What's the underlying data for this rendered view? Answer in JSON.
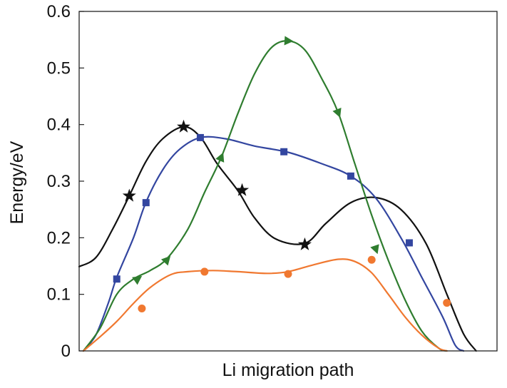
{
  "chart_data": {
    "type": "line",
    "title": "",
    "xlabel": "Li migration path",
    "ylabel": "Energy/eV",
    "ylim": [
      0,
      0.6
    ],
    "xlim": [
      0,
      1
    ],
    "yticks": [
      "0",
      "0.1",
      "0.2",
      "0.3",
      "0.4",
      "0.5",
      "0.6"
    ],
    "grid": false,
    "legend": "none",
    "series": [
      {
        "color": "#111111",
        "marker": "star",
        "curve": [
          [
            0,
            0.149
          ],
          [
            0.04,
            0.165
          ],
          [
            0.08,
            0.215
          ],
          [
            0.12,
            0.274
          ],
          [
            0.16,
            0.335
          ],
          [
            0.2,
            0.375
          ],
          [
            0.25,
            0.396
          ],
          [
            0.29,
            0.378
          ],
          [
            0.33,
            0.331
          ],
          [
            0.38,
            0.283
          ],
          [
            0.42,
            0.235
          ],
          [
            0.47,
            0.198
          ],
          [
            0.54,
            0.19
          ],
          [
            0.59,
            0.225
          ],
          [
            0.65,
            0.262
          ],
          [
            0.71,
            0.271
          ],
          [
            0.77,
            0.25
          ],
          [
            0.83,
            0.19
          ],
          [
            0.88,
            0.1
          ],
          [
            0.92,
            0.03
          ],
          [
            0.95,
            0.0
          ]
        ],
        "markers": [
          [
            0.12,
            0.274
          ],
          [
            0.25,
            0.396
          ],
          [
            0.39,
            0.284
          ],
          [
            0.54,
            0.188
          ]
        ]
      },
      {
        "color": "#3346a0",
        "marker": "square",
        "curve": [
          [
            0.01,
            0.0
          ],
          [
            0.04,
            0.028
          ],
          [
            0.07,
            0.085
          ],
          [
            0.09,
            0.13
          ],
          [
            0.13,
            0.2
          ],
          [
            0.16,
            0.263
          ],
          [
            0.2,
            0.32
          ],
          [
            0.24,
            0.356
          ],
          [
            0.29,
            0.377
          ],
          [
            0.35,
            0.375
          ],
          [
            0.42,
            0.362
          ],
          [
            0.5,
            0.351
          ],
          [
            0.58,
            0.331
          ],
          [
            0.65,
            0.309
          ],
          [
            0.71,
            0.27
          ],
          [
            0.77,
            0.2
          ],
          [
            0.82,
            0.13
          ],
          [
            0.87,
            0.06
          ],
          [
            0.9,
            0.01
          ],
          [
            0.92,
            0.0
          ]
        ],
        "markers": [
          [
            0.09,
            0.127
          ],
          [
            0.16,
            0.262
          ],
          [
            0.29,
            0.377
          ],
          [
            0.49,
            0.352
          ],
          [
            0.65,
            0.309
          ],
          [
            0.79,
            0.191
          ]
        ]
      },
      {
        "color": "#2f7d2f",
        "marker": "triangle",
        "curve": [
          [
            0.01,
            0.0
          ],
          [
            0.05,
            0.04
          ],
          [
            0.09,
            0.1
          ],
          [
            0.13,
            0.127
          ],
          [
            0.17,
            0.142
          ],
          [
            0.21,
            0.163
          ],
          [
            0.26,
            0.215
          ],
          [
            0.3,
            0.28
          ],
          [
            0.34,
            0.342
          ],
          [
            0.38,
            0.42
          ],
          [
            0.42,
            0.49
          ],
          [
            0.46,
            0.536
          ],
          [
            0.5,
            0.548
          ],
          [
            0.54,
            0.532
          ],
          [
            0.58,
            0.482
          ],
          [
            0.62,
            0.421
          ],
          [
            0.66,
            0.33
          ],
          [
            0.7,
            0.24
          ],
          [
            0.74,
            0.16
          ],
          [
            0.78,
            0.09
          ],
          [
            0.82,
            0.035
          ],
          [
            0.86,
            0.005
          ],
          [
            0.88,
            0.0
          ]
        ],
        "markers": [
          [
            0.14,
            0.127
          ],
          [
            0.21,
            0.161
          ],
          [
            0.34,
            0.342
          ],
          [
            0.5,
            0.548
          ],
          [
            0.62,
            0.421
          ],
          [
            0.71,
            0.18
          ]
        ]
      },
      {
        "color": "#f07830",
        "marker": "circle",
        "curve": [
          [
            0.01,
            0.0
          ],
          [
            0.05,
            0.025
          ],
          [
            0.09,
            0.052
          ],
          [
            0.13,
            0.084
          ],
          [
            0.17,
            0.112
          ],
          [
            0.22,
            0.135
          ],
          [
            0.26,
            0.14
          ],
          [
            0.32,
            0.142
          ],
          [
            0.38,
            0.14
          ],
          [
            0.45,
            0.137
          ],
          [
            0.5,
            0.14
          ],
          [
            0.56,
            0.152
          ],
          [
            0.62,
            0.162
          ],
          [
            0.66,
            0.158
          ],
          [
            0.7,
            0.138
          ],
          [
            0.74,
            0.1
          ],
          [
            0.78,
            0.06
          ],
          [
            0.82,
            0.028
          ],
          [
            0.86,
            0.005
          ],
          [
            0.88,
            0.0
          ]
        ],
        "markers": [
          [
            0.15,
            0.075
          ],
          [
            0.3,
            0.14
          ],
          [
            0.5,
            0.136
          ],
          [
            0.7,
            0.161
          ],
          [
            0.88,
            0.085
          ]
        ]
      }
    ]
  }
}
